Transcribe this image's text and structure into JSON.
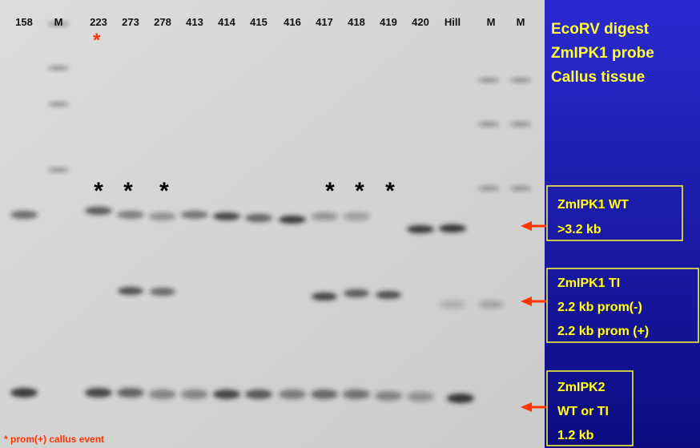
{
  "lanes": [
    "158",
    "M",
    "223",
    "273",
    "278",
    "413",
    "414",
    "415",
    "416",
    "417",
    "418",
    "419",
    "420",
    "Hill",
    "M",
    "M"
  ],
  "red_asterisk": "*",
  "asterisks": [
    "*",
    "*",
    "*",
    "*",
    "*",
    "*"
  ],
  "footnote": "* prom(+) callus event",
  "title_lines": [
    "EcoRV digest",
    "ZmIPK1 probe",
    "Callus tissue"
  ],
  "boxes": [
    {
      "lines": [
        "ZmIPK1 WT",
        ">3.2 kb"
      ]
    },
    {
      "lines": [
        "ZmIPK1 TI",
        "2.2 kb prom(-)",
        "2.2 kb prom (+)"
      ]
    },
    {
      "lines": [
        "ZmIPK2",
        "WT or TI",
        "1.2 kb"
      ]
    }
  ]
}
